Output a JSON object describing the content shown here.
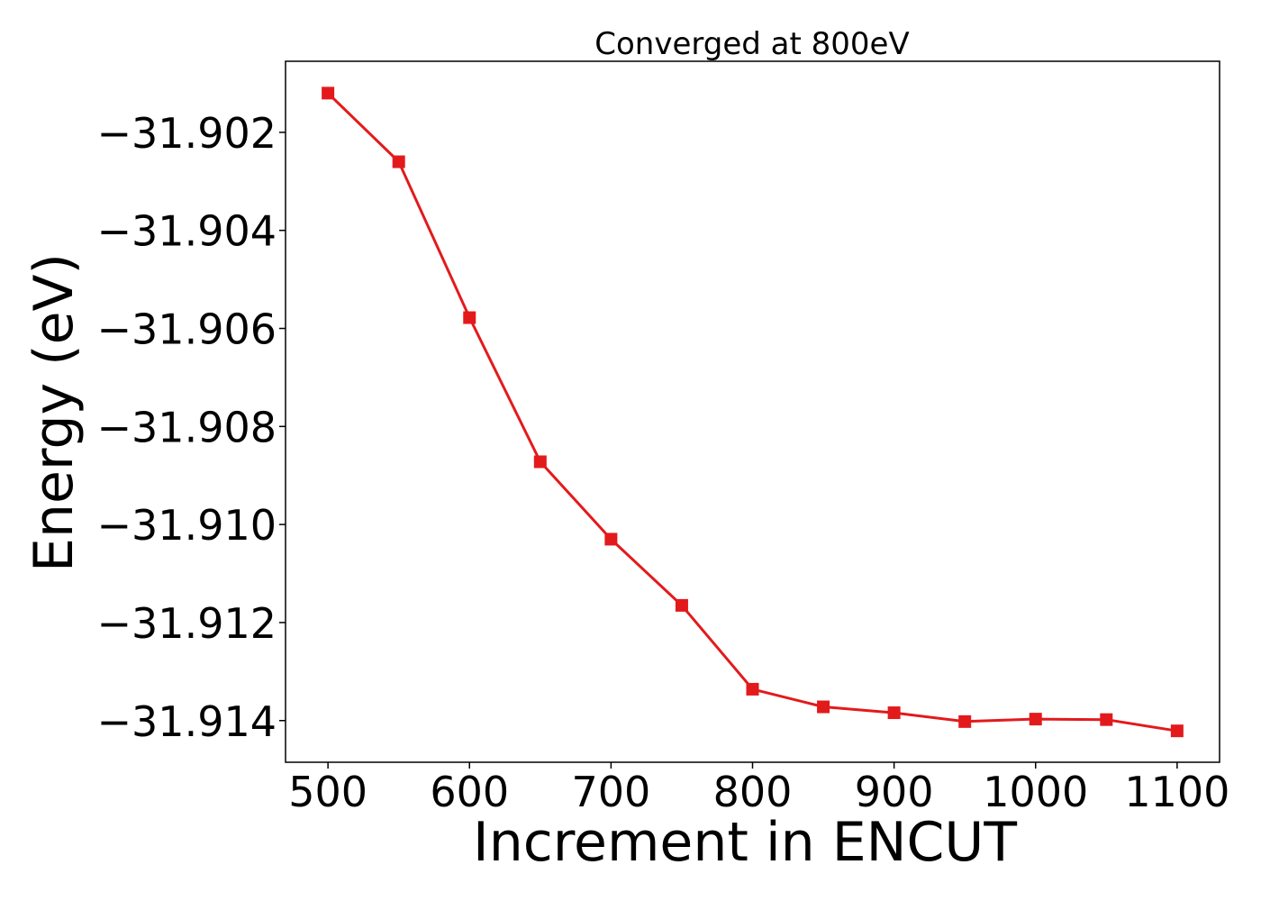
{
  "chart_data": {
    "type": "line",
    "title": "Converged at 800eV",
    "xlabel": "Increment in ENCUT",
    "ylabel": "Energy (eV)",
    "xlim": [
      470,
      1130
    ],
    "ylim": [
      -31.91485,
      -31.90055
    ],
    "x_ticks": [
      500,
      600,
      700,
      800,
      900,
      1000,
      1100
    ],
    "x_tick_labels": [
      "500",
      "600",
      "700",
      "800",
      "900",
      "1000",
      "1100"
    ],
    "y_ticks": [
      -31.902,
      -31.904,
      -31.906,
      -31.908,
      -31.91,
      -31.912,
      -31.914
    ],
    "y_tick_labels": [
      "−31.902",
      "−31.904",
      "−31.906",
      "−31.908",
      "−31.910",
      "−31.912",
      "−31.914"
    ],
    "grid": false,
    "legend": "none",
    "marker": "square",
    "series": [
      {
        "color": "#e31a1c",
        "x": [
          500,
          550,
          600,
          650,
          700,
          750,
          800,
          850,
          900,
          950,
          1000,
          1050,
          1100
        ],
        "y": [
          -31.9012,
          -31.9026,
          -31.90578,
          -31.90872,
          -31.9103,
          -31.91165,
          -31.91336,
          -31.91372,
          -31.91384,
          -31.91402,
          -31.91397,
          -31.91398,
          -31.91421
        ]
      }
    ]
  }
}
